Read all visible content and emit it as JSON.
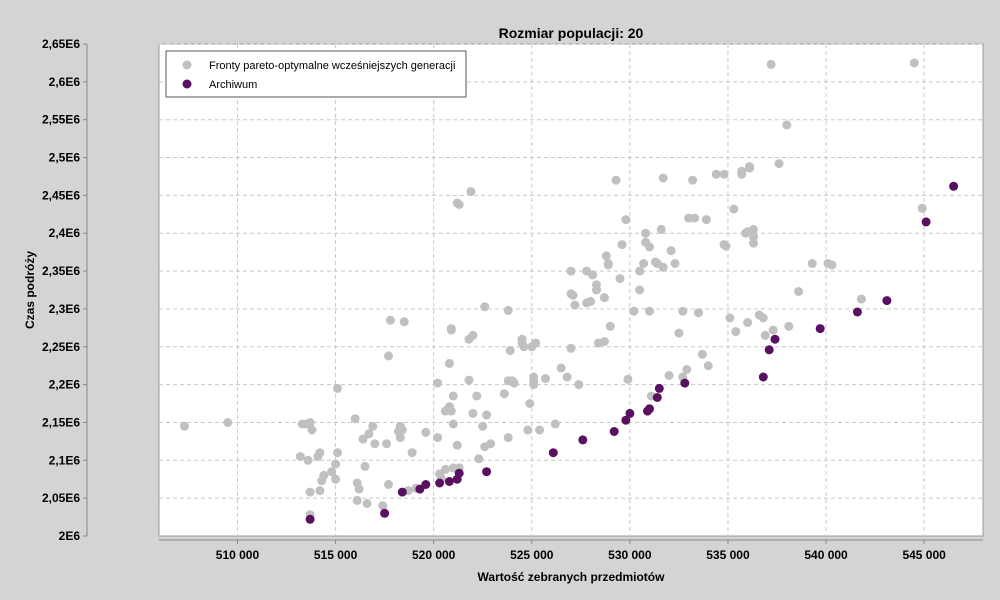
{
  "chart_data": {
    "type": "scatter",
    "title": "Rozmiar populacji: 20",
    "xlabel": "Wartość zebranych przedmiotów",
    "ylabel": "Czas podróży",
    "xlim": [
      506000,
      548000
    ],
    "ylim": [
      2000000,
      2650000
    ],
    "x_ticks": [
      510000,
      515000,
      520000,
      525000,
      530000,
      535000,
      540000,
      545000
    ],
    "x_tick_labels": [
      "510 000",
      "515 000",
      "520 000",
      "525 000",
      "530 000",
      "535 000",
      "540 000",
      "545 000"
    ],
    "y_ticks": [
      2000000,
      2050000,
      2100000,
      2150000,
      2200000,
      2250000,
      2300000,
      2350000,
      2400000,
      2450000,
      2500000,
      2550000,
      2600000,
      2650000
    ],
    "y_tick_labels": [
      "2E6",
      "2,05E6",
      "2,1E6",
      "2,15E6",
      "2,2E6",
      "2,25E6",
      "2,3E6",
      "2,35E6",
      "2,4E6",
      "2,45E6",
      "2,5E6",
      "2,55E6",
      "2,6E6",
      "2,65E6"
    ],
    "grid": true,
    "legend_position": "top-left",
    "series": [
      {
        "name": "Fronty pareto-optymalne wcześniejszych generacji",
        "color": "#c0c0c0",
        "points": [
          [
            507300,
            2145000
          ],
          [
            509500,
            2150000
          ],
          [
            513200,
            2105000
          ],
          [
            513300,
            2148000
          ],
          [
            513500,
            2148000
          ],
          [
            513600,
            2100000
          ],
          [
            513700,
            2150000
          ],
          [
            513800,
            2140000
          ],
          [
            513700,
            2058000
          ],
          [
            513700,
            2028000
          ],
          [
            514100,
            2105000
          ],
          [
            514200,
            2110000
          ],
          [
            514300,
            2073000
          ],
          [
            514400,
            2080000
          ],
          [
            514200,
            2060000
          ],
          [
            514800,
            2085000
          ],
          [
            515000,
            2095000
          ],
          [
            515100,
            2110000
          ],
          [
            515000,
            2075000
          ],
          [
            515100,
            2195000
          ],
          [
            516000,
            2155000
          ],
          [
            516100,
            2070000
          ],
          [
            516200,
            2062000
          ],
          [
            516100,
            2047000
          ],
          [
            516400,
            2128000
          ],
          [
            516700,
            2135000
          ],
          [
            516500,
            2092000
          ],
          [
            516600,
            2043000
          ],
          [
            516900,
            2145000
          ],
          [
            517000,
            2122000
          ],
          [
            517700,
            2238000
          ],
          [
            517600,
            2122000
          ],
          [
            517700,
            2068000
          ],
          [
            517400,
            2040000
          ],
          [
            517800,
            2285000
          ],
          [
            518500,
            2283000
          ],
          [
            518300,
            2145000
          ],
          [
            518200,
            2138000
          ],
          [
            518300,
            2130000
          ],
          [
            518400,
            2140000
          ],
          [
            518900,
            2110000
          ],
          [
            518700,
            2060000
          ],
          [
            519100,
            2063000
          ],
          [
            519600,
            2137000
          ],
          [
            520200,
            2202000
          ],
          [
            520200,
            2130000
          ],
          [
            520300,
            2082000
          ],
          [
            520400,
            2076000
          ],
          [
            520600,
            2165000
          ],
          [
            520600,
            2088000
          ],
          [
            520800,
            2171000
          ],
          [
            520900,
            2165000
          ],
          [
            520800,
            2228000
          ],
          [
            520900,
            2272000
          ],
          [
            520900,
            2274000
          ],
          [
            521000,
            2185000
          ],
          [
            521000,
            2148000
          ],
          [
            521200,
            2120000
          ],
          [
            521000,
            2090000
          ],
          [
            521300,
            2090000
          ],
          [
            521200,
            2440000
          ],
          [
            521300,
            2438000
          ],
          [
            521900,
            2455000
          ],
          [
            521800,
            2260000
          ],
          [
            522000,
            2265000
          ],
          [
            522200,
            2185000
          ],
          [
            521800,
            2206000
          ],
          [
            522000,
            2162000
          ],
          [
            522500,
            2145000
          ],
          [
            522300,
            2102000
          ],
          [
            522600,
            2303000
          ],
          [
            522600,
            2118000
          ],
          [
            522700,
            2160000
          ],
          [
            522900,
            2122000
          ],
          [
            523600,
            2188000
          ],
          [
            523800,
            2298000
          ],
          [
            523800,
            2205000
          ],
          [
            523900,
            2245000
          ],
          [
            524000,
            2205000
          ],
          [
            523800,
            2130000
          ],
          [
            524100,
            2202000
          ],
          [
            524500,
            2255000
          ],
          [
            524500,
            2260000
          ],
          [
            524600,
            2250000
          ],
          [
            524900,
            2175000
          ],
          [
            524800,
            2140000
          ],
          [
            525100,
            2210000
          ],
          [
            525100,
            2205000
          ],
          [
            525100,
            2200000
          ],
          [
            525000,
            2250000
          ],
          [
            525200,
            2255000
          ],
          [
            525400,
            2140000
          ],
          [
            525700,
            2208000
          ],
          [
            526200,
            2148000
          ],
          [
            526500,
            2222000
          ],
          [
            526800,
            2210000
          ],
          [
            527000,
            2248000
          ],
          [
            527000,
            2350000
          ],
          [
            527000,
            2320000
          ],
          [
            527100,
            2318000
          ],
          [
            527200,
            2305000
          ],
          [
            527400,
            2200000
          ],
          [
            527800,
            2308000
          ],
          [
            527800,
            2350000
          ],
          [
            528000,
            2310000
          ],
          [
            528100,
            2345000
          ],
          [
            528300,
            2332000
          ],
          [
            528300,
            2325000
          ],
          [
            528400,
            2255000
          ],
          [
            528700,
            2315000
          ],
          [
            528700,
            2257000
          ],
          [
            528800,
            2370000
          ],
          [
            528900,
            2358000
          ],
          [
            528900,
            2360000
          ],
          [
            529000,
            2277000
          ],
          [
            529300,
            2470000
          ],
          [
            529500,
            2340000
          ],
          [
            529600,
            2385000
          ],
          [
            529800,
            2418000
          ],
          [
            529900,
            2207000
          ],
          [
            530200,
            2297000
          ],
          [
            530500,
            2325000
          ],
          [
            530500,
            2350000
          ],
          [
            530700,
            2360000
          ],
          [
            530800,
            2400000
          ],
          [
            530800,
            2388000
          ],
          [
            531000,
            2382000
          ],
          [
            531000,
            2297000
          ],
          [
            531100,
            2185000
          ],
          [
            531300,
            2362000
          ],
          [
            531400,
            2360000
          ],
          [
            531600,
            2405000
          ],
          [
            531700,
            2355000
          ],
          [
            531700,
            2473000
          ],
          [
            532000,
            2212000
          ],
          [
            532100,
            2377000
          ],
          [
            532300,
            2360000
          ],
          [
            532500,
            2268000
          ],
          [
            532700,
            2297000
          ],
          [
            532700,
            2210000
          ],
          [
            532900,
            2220000
          ],
          [
            533000,
            2420000
          ],
          [
            533200,
            2470000
          ],
          [
            533300,
            2420000
          ],
          [
            533500,
            2295000
          ],
          [
            533700,
            2240000
          ],
          [
            533900,
            2418000
          ],
          [
            534000,
            2225000
          ],
          [
            534400,
            2478000
          ],
          [
            534800,
            2478000
          ],
          [
            534800,
            2385000
          ],
          [
            534900,
            2383000
          ],
          [
            535100,
            2288000
          ],
          [
            535300,
            2432000
          ],
          [
            535400,
            2270000
          ],
          [
            535700,
            2478000
          ],
          [
            535700,
            2482000
          ],
          [
            535900,
            2400000
          ],
          [
            536000,
            2402000
          ],
          [
            536000,
            2282000
          ],
          [
            536100,
            2488000
          ],
          [
            536100,
            2486000
          ],
          [
            536200,
            2403000
          ],
          [
            536300,
            2387000
          ],
          [
            536300,
            2395000
          ],
          [
            536300,
            2405000
          ],
          [
            536600,
            2292000
          ],
          [
            536800,
            2288000
          ],
          [
            536900,
            2265000
          ],
          [
            537200,
            2623000
          ],
          [
            537300,
            2272000
          ],
          [
            537600,
            2492000
          ],
          [
            538000,
            2543000
          ],
          [
            538100,
            2277000
          ],
          [
            538600,
            2323000
          ],
          [
            539300,
            2360000
          ],
          [
            540100,
            2360000
          ],
          [
            540300,
            2358000
          ],
          [
            541800,
            2313000
          ],
          [
            544500,
            2625000
          ],
          [
            544900,
            2433000
          ]
        ]
      },
      {
        "name": "Archiwum",
        "color": "#5a1060",
        "points": [
          [
            513700,
            2022000
          ],
          [
            517500,
            2030000
          ],
          [
            518400,
            2058000
          ],
          [
            519300,
            2062000
          ],
          [
            519600,
            2068000
          ],
          [
            520300,
            2070000
          ],
          [
            520800,
            2072000
          ],
          [
            521200,
            2075000
          ],
          [
            521300,
            2083000
          ],
          [
            522700,
            2085000
          ],
          [
            526100,
            2110000
          ],
          [
            527600,
            2127000
          ],
          [
            529200,
            2138000
          ],
          [
            529800,
            2153000
          ],
          [
            530000,
            2162000
          ],
          [
            530900,
            2165000
          ],
          [
            531000,
            2168000
          ],
          [
            531400,
            2183000
          ],
          [
            531500,
            2195000
          ],
          [
            532800,
            2202000
          ],
          [
            536800,
            2210000
          ],
          [
            537100,
            2246000
          ],
          [
            537400,
            2260000
          ],
          [
            539700,
            2274000
          ],
          [
            541600,
            2296000
          ],
          [
            543100,
            2311000
          ],
          [
            545100,
            2415000
          ],
          [
            546500,
            2462000
          ]
        ]
      }
    ]
  }
}
